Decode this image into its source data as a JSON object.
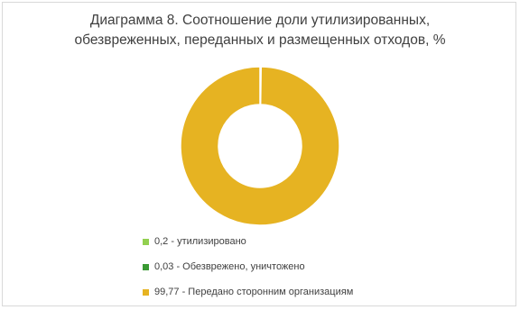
{
  "chart_data": {
    "type": "pie",
    "donut": true,
    "title_line1": "Диаграмма 8. Соотношение  доли утилизированных,",
    "title_line2": "обезвреженных,  переданных  и размещенных  отходов, %",
    "slices": [
      {
        "value": 0.2,
        "label": "0,2 - утилизировано",
        "color": "#92d050"
      },
      {
        "value": 0.03,
        "label": "0,03 - Обезврежено, уничтожено",
        "color": "#3a9a34"
      },
      {
        "value": 99.77,
        "label": "99,77 - Передано сторонним организациям",
        "color": "#e6b322"
      }
    ],
    "legend_position": "bottom",
    "separator_color": "#ffffff"
  }
}
